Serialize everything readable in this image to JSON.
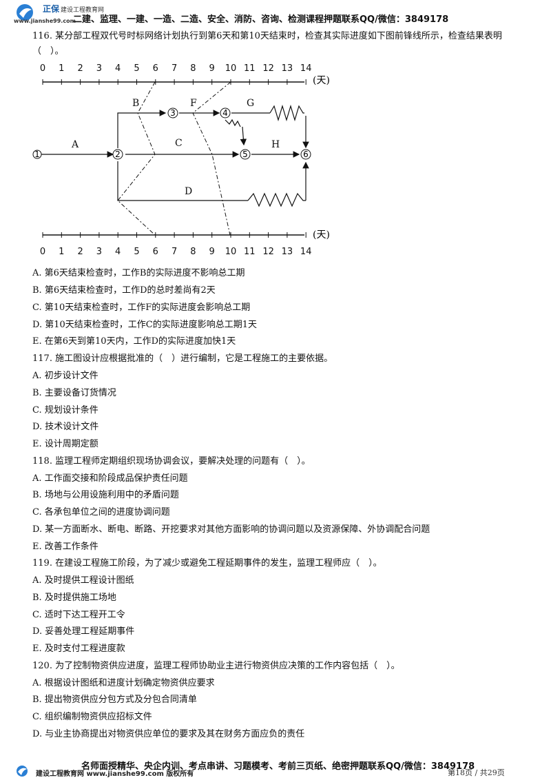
{
  "header": {
    "logo_name": "正保",
    "logo_sub": "建设工程教育网",
    "logo_url": "www.jianshe99.com",
    "banner": "二建、监理、一建、一造、二造、安全、消防、咨询、检测课程押题联系QQ/微信：3849178"
  },
  "questions": [
    {
      "title": "116. 某分部工程双代号时标网络计划执行到第6天和第10天结束时，检查其实际进度如下图前锋线所示，检查结果表明（　）。",
      "options": [
        "A. 第6天结束检查时，工作B的实际进度不影响总工期",
        "B. 第6天结束检查时，工作D的总时差尚有2天",
        "C. 第10天结束检查时，工作F的实际进度会影响总工期",
        "D. 第10天结束检查时，工作C的实际进度影响总工期1天",
        "E. 在第6天到第10天内，工作D的实际进度加快1天"
      ]
    },
    {
      "title": "117. 施工图设计应根据批准的（　）进行编制，它是工程施工的主要依据。",
      "options": [
        "A. 初步设计文件",
        "B. 主要设备订货情况",
        "C. 规划设计条件",
        "D. 技术设计文件",
        "E. 设计周期定额"
      ]
    },
    {
      "title": "118. 监理工程师定期组织现场协调会议，要解决处理的问题有（　）。",
      "options": [
        "A. 工作面交接和阶段成品保护责任问题",
        "B. 场地与公用设施利用中的矛盾问题",
        "C. 各承包单位之间的进度协调问题",
        "D. 某一方面断水、断电、断路、开挖要求对其他方面影响的协调问题以及资源保障、外协调配合问题",
        "E. 改善工作条件"
      ]
    },
    {
      "title": "119. 在建设工程施工阶段，为了减少或避免工程延期事件的发生，监理工程师应（　）。",
      "options": [
        "A. 及时提供工程设计图纸",
        "B. 及时提供施工场地",
        "C. 适时下达工程开工令",
        "D. 妥善处理工程延期事件",
        "E. 及时支付工程进度款"
      ]
    },
    {
      "title": "120. 为了控制物资供应进度，监理工程师协助业主进行物资供应决策的工作内容包括（　）。",
      "options": [
        "A. 根据设计图纸和进度计划确定物资供应要求",
        "B. 提出物资供应分包方式及分包合同清单",
        "C. 组织编制物资供应招标文件",
        "D. 与业主协商提出对物资供应单位的要求及其在财务方面应负的责任"
      ]
    }
  ],
  "diagram": {
    "ticks": [
      "0",
      "1",
      "2",
      "3",
      "4",
      "5",
      "6",
      "7",
      "8",
      "9",
      "10",
      "11",
      "12",
      "13",
      "14"
    ],
    "unit": "(天)",
    "nodes": [
      "1",
      "2",
      "3",
      "4",
      "5",
      "6"
    ],
    "activities": [
      "A",
      "B",
      "C",
      "D",
      "F",
      "G",
      "H"
    ]
  },
  "footer": {
    "banner": "名师面授精华、央企内训、考点串讲、习题模考、考前三页纸、绝密押题联系QQ/微信：3849178",
    "site": "建设工程教育网 www.jianshe99.com 版权所有",
    "page": "第18页 / 共29页"
  }
}
